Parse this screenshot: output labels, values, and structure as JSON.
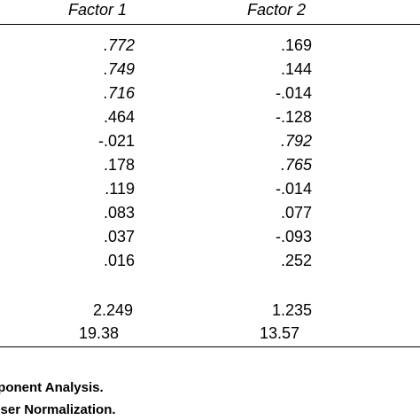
{
  "table": {
    "headers": [
      "Factor 1",
      "Factor 2"
    ],
    "loadings": [
      {
        "f1": ".772",
        "f1_italic": true,
        "f2": ".169",
        "f2_italic": false
      },
      {
        "f1": ".749",
        "f1_italic": true,
        "f2": ".144",
        "f2_italic": false
      },
      {
        "f1": ".716",
        "f1_italic": true,
        "f2": "-.014",
        "f2_italic": false
      },
      {
        "f1": ".464",
        "f1_italic": false,
        "f2": "-.128",
        "f2_italic": false
      },
      {
        "f1": "-.021",
        "f1_italic": false,
        "f2": ".792",
        "f2_italic": true
      },
      {
        "f1": ".178",
        "f1_italic": false,
        "f2": ".765",
        "f2_italic": true
      },
      {
        "f1": ".119",
        "f1_italic": false,
        "f2": "-.014",
        "f2_italic": false
      },
      {
        "f1": ".083",
        "f1_italic": false,
        "f2": ".077",
        "f2_italic": false
      },
      {
        "f1": ".037",
        "f1_italic": false,
        "f2": "-.093",
        "f2_italic": false
      },
      {
        "f1": ".016",
        "f1_italic": false,
        "f2": ".252",
        "f2_italic": false
      }
    ],
    "eigenvalues": {
      "f1": "2.249",
      "f2": "1.235"
    },
    "variance": {
      "f1": "19.38",
      "f2": "13.57"
    }
  },
  "notes": [
    "nponent Analysis.",
    "aiser Normalization."
  ]
}
